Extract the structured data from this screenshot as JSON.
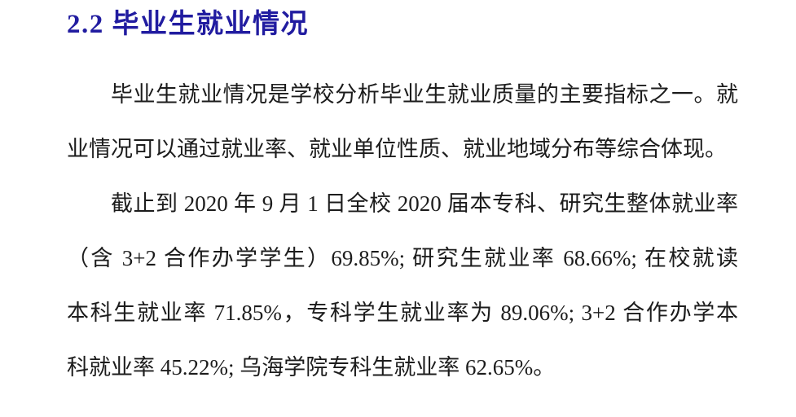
{
  "page": {
    "background_color": "#ffffff"
  },
  "heading": {
    "text": "2.2 毕业生就业情况",
    "color": "#211CA0"
  },
  "body": {
    "text_color": "#1C1C1C",
    "paragraphs": [
      {
        "lines": [
          "毕业生就业情况是学校分析毕业生就业质量的主要指标之一。就",
          "业情况可以通过就业率、就业单位性质、就业地域分布等综合体现。"
        ]
      },
      {
        "lines": [
          "截止到 2020 年 9 月 1 日全校 2020 届本专科、研究生整体就业率",
          "（含 3+2 合作办学学生）69.85%; 研究生就业率 68.66%; 在校就读",
          "本科生就业率 71.85%，专科学生就业率为 89.06%; 3+2 合作办学本",
          "科就业率 45.22%; 乌海学院专科生就业率 62.65%。"
        ]
      }
    ]
  }
}
